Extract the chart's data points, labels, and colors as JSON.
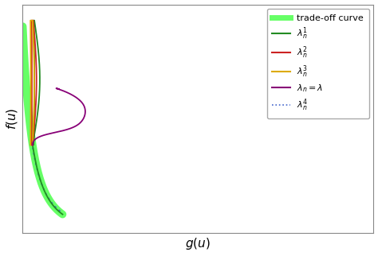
{
  "xlabel": "$g(u)$",
  "ylabel": "$f(u)$",
  "tradeoff_color": "#66ff66",
  "tradeoff_lw": 7,
  "curve1_color": "#228B22",
  "curve2_color": "#cc2222",
  "curve3_color": "#ddaa00",
  "curve4_color": "#880077",
  "curve5_color": "#4466cc",
  "xlim": [
    0.0,
    1.0
  ],
  "ylim": [
    0.0,
    1.0
  ]
}
